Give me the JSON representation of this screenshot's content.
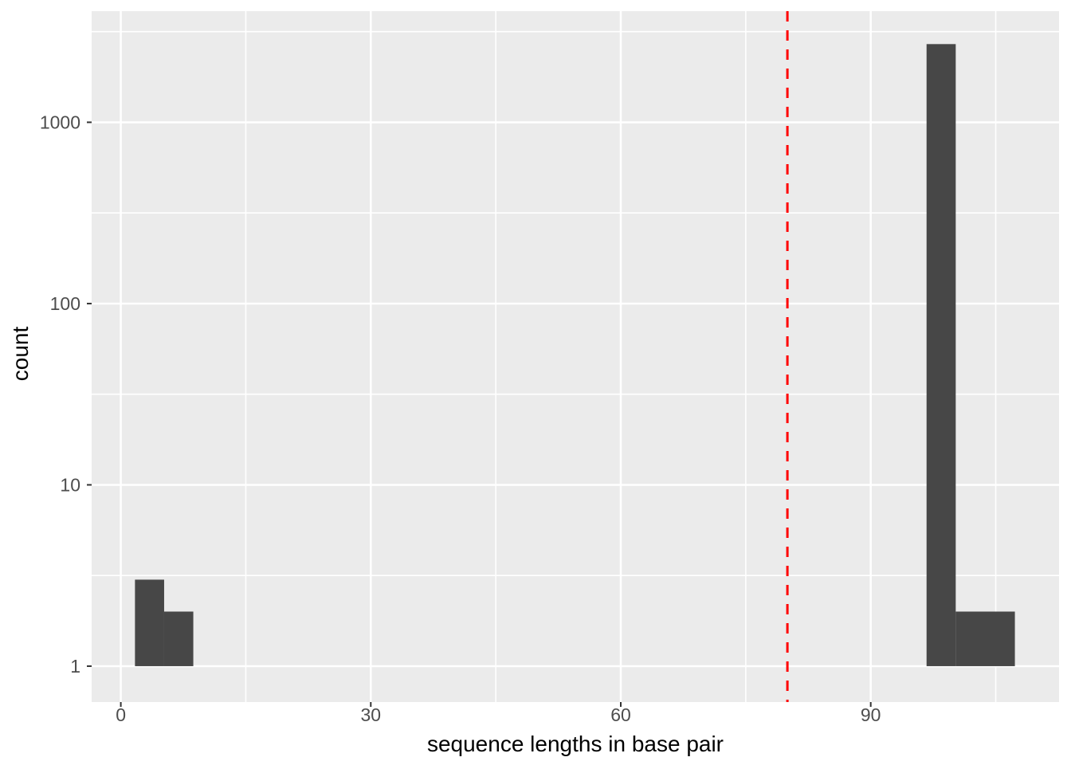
{
  "figure": {
    "background": "#FFFFFF"
  },
  "chart_data": {
    "type": "bar",
    "subtype": "histogram",
    "title": "",
    "xlabel": "sequence lengths in base pair",
    "ylabel": "count",
    "y_scale": "log10",
    "grid": true,
    "legend_position": "none",
    "x_ticks": [
      0,
      30,
      60,
      90
    ],
    "x_minor_ticks": [
      15,
      45,
      75,
      105
    ],
    "y_ticks": [
      1,
      10,
      100,
      1000
    ],
    "y_minor_ticks_log10": [
      0.5,
      1.5,
      2.5,
      3.5
    ],
    "x_domain": [
      -3.5,
      112.6
    ],
    "y_domain_log10": [
      -0.198,
      3.613
    ],
    "bars": [
      {
        "x_start": 1.7,
        "x_end": 5.2,
        "count": 3
      },
      {
        "x_start": 5.2,
        "x_end": 8.7,
        "count": 2
      },
      {
        "x_start": 96.7,
        "x_end": 100.2,
        "count": 2700
      },
      {
        "x_start": 100.2,
        "x_end": 107.3,
        "count": 2
      }
    ],
    "vline": {
      "x": 80,
      "color": "#FF0000",
      "style": "dashed"
    },
    "colors": {
      "bar_fill": "#474747",
      "panel_background": "#EBEBEB",
      "grid_major": "#FFFFFF",
      "grid_minor": "#FFFFFF",
      "tick_mark": "#333333",
      "tick_label": "#4D4D4D",
      "axis_title": "#000000"
    }
  }
}
